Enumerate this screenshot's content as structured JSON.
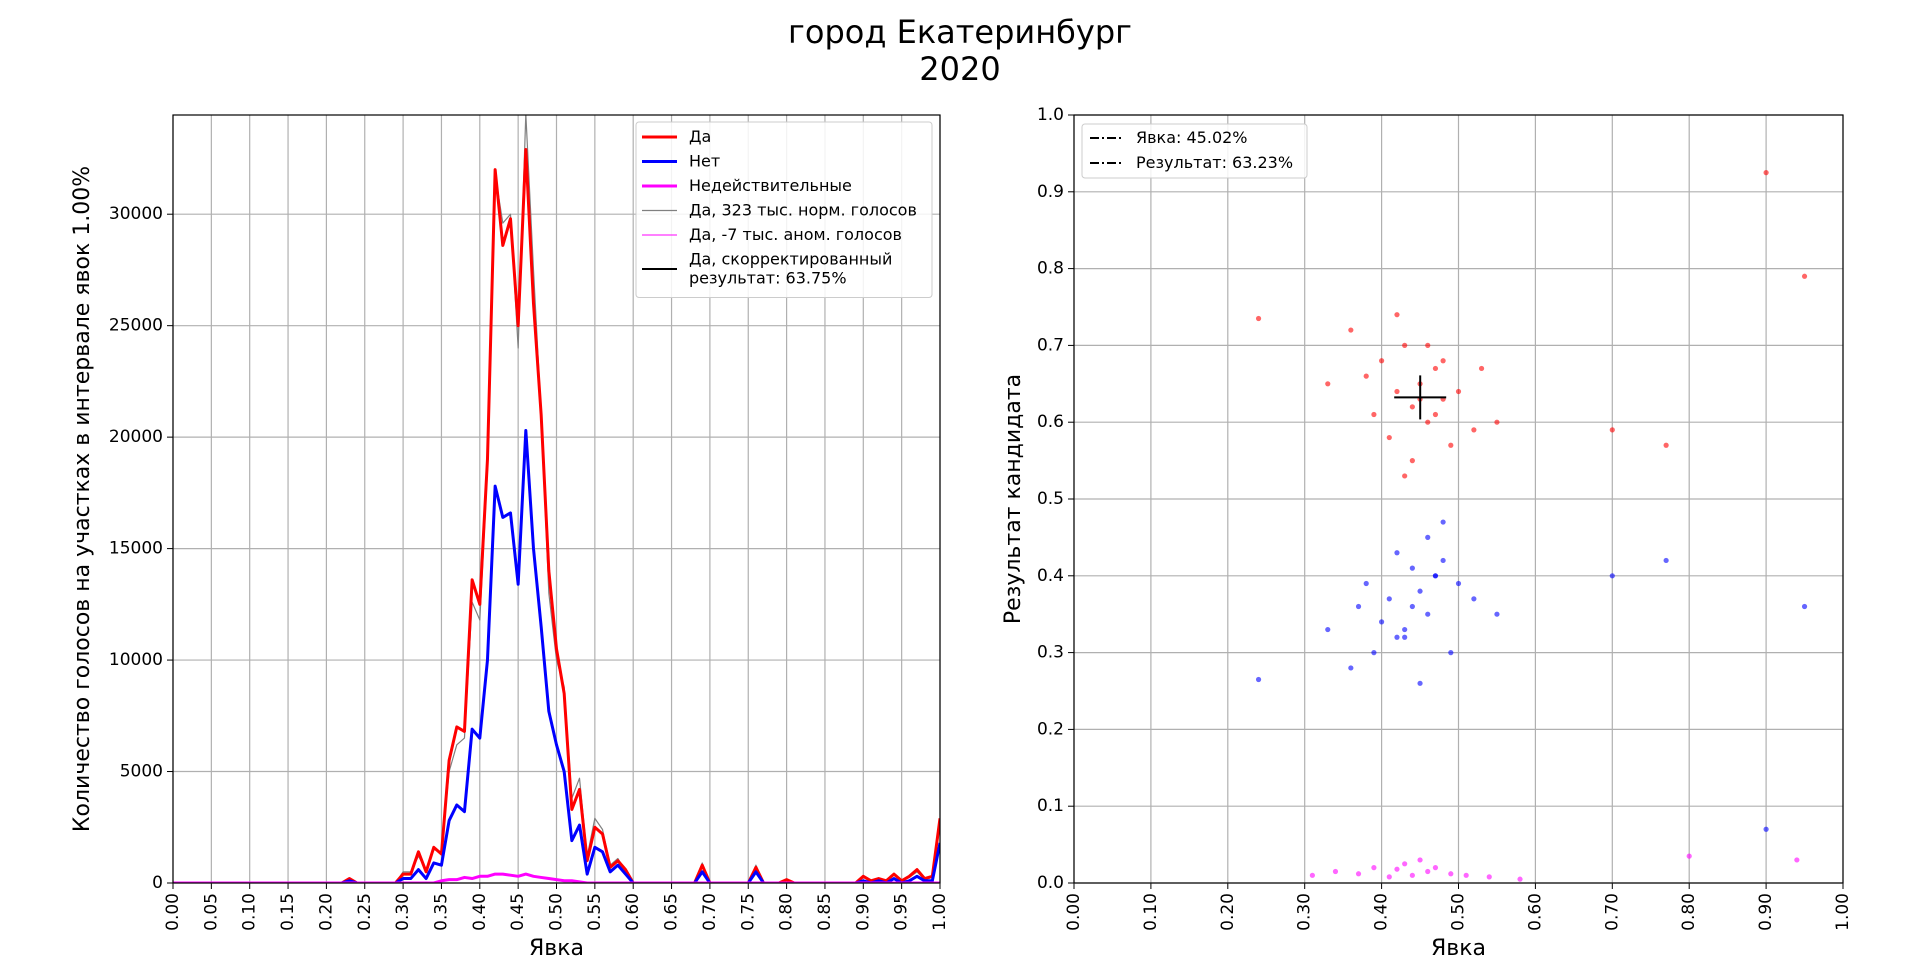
{
  "title": "город Екатеринбург",
  "subtitle": "2020",
  "chart_data": [
    {
      "type": "line",
      "xlabel": "Явка",
      "ylabel": "Количество голосов на участках в интервале явок 1.00%",
      "xlim": [
        0,
        1
      ],
      "ylim": [
        0,
        34450
      ],
      "xticks": [
        {
          "value": 0,
          "label": "0.00"
        },
        {
          "value": 0.05,
          "label": "0.05"
        },
        {
          "value": 0.1,
          "label": "0.10"
        },
        {
          "value": 0.15,
          "label": "0.15"
        },
        {
          "value": 0.2,
          "label": "0.20"
        },
        {
          "value": 0.25,
          "label": "0.25"
        },
        {
          "value": 0.3,
          "label": "0.30"
        },
        {
          "value": 0.35,
          "label": "0.35"
        },
        {
          "value": 0.4,
          "label": "0.40"
        },
        {
          "value": 0.45,
          "label": "0.45"
        },
        {
          "value": 0.5,
          "label": "0.50"
        },
        {
          "value": 0.55,
          "label": "0.55"
        },
        {
          "value": 0.6,
          "label": "0.60"
        },
        {
          "value": 0.65,
          "label": "0.65"
        },
        {
          "value": 0.7,
          "label": "0.70"
        },
        {
          "value": 0.75,
          "label": "0.75"
        },
        {
          "value": 0.8,
          "label": "0.80"
        },
        {
          "value": 0.85,
          "label": "0.85"
        },
        {
          "value": 0.9,
          "label": "0.90"
        },
        {
          "value": 0.95,
          "label": "0.95"
        },
        {
          "value": 1,
          "label": "1.00"
        }
      ],
      "yticks": [
        0,
        5000,
        10000,
        15000,
        20000,
        25000,
        30000
      ],
      "grid": true,
      "legend": "upper right",
      "x": [
        0,
        0.01,
        0.02,
        0.03,
        0.04,
        0.05,
        0.06,
        0.07,
        0.08,
        0.09,
        0.1,
        0.11,
        0.12,
        0.13,
        0.14,
        0.15,
        0.16,
        0.17,
        0.18,
        0.19,
        0.2,
        0.21,
        0.22,
        0.23,
        0.24,
        0.25,
        0.26,
        0.27,
        0.28,
        0.29,
        0.3,
        0.31,
        0.32,
        0.33,
        0.34,
        0.35,
        0.36,
        0.37,
        0.38,
        0.39,
        0.4,
        0.41,
        0.42,
        0.43,
        0.44,
        0.45,
        0.46,
        0.47,
        0.48,
        0.49,
        0.5,
        0.51,
        0.52,
        0.53,
        0.54,
        0.55,
        0.56,
        0.57,
        0.58,
        0.59,
        0.6,
        0.61,
        0.62,
        0.63,
        0.64,
        0.65,
        0.66,
        0.67,
        0.68,
        0.69,
        0.7,
        0.71,
        0.72,
        0.73,
        0.74,
        0.75,
        0.76,
        0.77,
        0.78,
        0.79,
        0.8,
        0.81,
        0.82,
        0.83,
        0.84,
        0.85,
        0.86,
        0.87,
        0.88,
        0.89,
        0.9,
        0.91,
        0.92,
        0.93,
        0.94,
        0.95,
        0.96,
        0.97,
        0.98,
        0.99,
        1
      ],
      "series": [
        {
          "name": "Да, 323 тыс. норм. голосов",
          "color": "#808080",
          "width": 1.2,
          "values": [
            0,
            0,
            0,
            0,
            0,
            0,
            0,
            0,
            0,
            0,
            0,
            0,
            0,
            0,
            0,
            0,
            0,
            0,
            0,
            0,
            0,
            0,
            0,
            200,
            0,
            0,
            0,
            0,
            0,
            0,
            500,
            500,
            1200,
            600,
            1500,
            1400,
            5000,
            6200,
            6500,
            12600,
            11800,
            18500,
            31800,
            29600,
            30000,
            24000,
            34500,
            27500,
            21000,
            13000,
            10000,
            8800,
            3800,
            4700,
            1200,
            2900,
            2400,
            800,
            1100,
            500,
            0,
            0,
            0,
            0,
            0,
            0,
            0,
            0,
            0,
            900,
            0,
            0,
            0,
            0,
            0,
            0,
            800,
            0,
            0,
            0,
            150,
            0,
            0,
            0,
            0,
            0,
            0,
            0,
            0,
            0,
            250,
            100,
            150,
            100,
            350,
            100,
            250,
            500,
            150,
            250,
            2600
          ]
        },
        {
          "name": "Да",
          "color": "#ff0000",
          "width": 3,
          "values": [
            0,
            0,
            0,
            0,
            0,
            0,
            0,
            0,
            0,
            0,
            0,
            0,
            0,
            0,
            0,
            0,
            0,
            0,
            0,
            0,
            0,
            0,
            0,
            200,
            0,
            0,
            0,
            0,
            0,
            0,
            400,
            400,
            1400,
            500,
            1600,
            1300,
            5500,
            7000,
            6800,
            13600,
            12500,
            19000,
            32000,
            28600,
            29800,
            25000,
            32900,
            26000,
            21000,
            14000,
            10500,
            8500,
            3300,
            4200,
            1000,
            2500,
            2200,
            700,
            1000,
            600,
            0,
            0,
            0,
            0,
            0,
            0,
            0,
            0,
            0,
            800,
            0,
            0,
            0,
            0,
            0,
            0,
            700,
            0,
            0,
            0,
            150,
            0,
            0,
            0,
            0,
            0,
            0,
            0,
            0,
            0,
            300,
            100,
            200,
            100,
            400,
            100,
            300,
            600,
            200,
            300,
            2900
          ]
        },
        {
          "name": "Нет",
          "color": "#0000ff",
          "width": 3,
          "values": [
            0,
            0,
            0,
            0,
            0,
            0,
            0,
            0,
            0,
            0,
            0,
            0,
            0,
            0,
            0,
            0,
            0,
            0,
            0,
            0,
            0,
            0,
            0,
            100,
            0,
            0,
            0,
            0,
            0,
            0,
            200,
            200,
            600,
            200,
            900,
            800,
            2800,
            3500,
            3200,
            6900,
            6500,
            10000,
            17800,
            16400,
            16600,
            13400,
            20300,
            15000,
            11500,
            7700,
            6200,
            5000,
            1900,
            2600,
            400,
            1600,
            1400,
            500,
            800,
            400,
            0,
            0,
            0,
            0,
            0,
            0,
            0,
            0,
            0,
            500,
            0,
            0,
            0,
            0,
            0,
            0,
            500,
            0,
            0,
            0,
            0,
            0,
            0,
            0,
            0,
            0,
            0,
            0,
            0,
            0,
            100,
            0,
            100,
            0,
            200,
            0,
            100,
            300,
            100,
            100,
            1800
          ]
        },
        {
          "name": "Недействительные",
          "color": "#ff00ff",
          "width": 3,
          "values": [
            0,
            0,
            0,
            0,
            0,
            0,
            0,
            0,
            0,
            0,
            0,
            0,
            0,
            0,
            0,
            0,
            0,
            0,
            0,
            0,
            0,
            0,
            0,
            0,
            0,
            0,
            0,
            0,
            0,
            0,
            0,
            0,
            0,
            0,
            0,
            100,
            150,
            150,
            250,
            200,
            300,
            300,
            400,
            400,
            350,
            300,
            400,
            300,
            250,
            200,
            150,
            100,
            100,
            50,
            0,
            0,
            0,
            0,
            0,
            0,
            0,
            0,
            0,
            0,
            0,
            0,
            0,
            0,
            0,
            0,
            0,
            0,
            0,
            0,
            0,
            0,
            0,
            0,
            0,
            0,
            0,
            0,
            0,
            0,
            0,
            0,
            0,
            0,
            0,
            0,
            0,
            0,
            0,
            0,
            0,
            0,
            0,
            0,
            0,
            0,
            0
          ]
        },
        {
          "name": "Да, -7 тыс. аном. голосов",
          "color": "#ff00ff",
          "width": 1,
          "values": [
            0,
            0,
            0,
            0,
            0,
            0,
            0,
            0,
            0,
            0,
            0,
            0,
            0,
            0,
            0,
            0,
            0,
            0,
            0,
            0,
            0,
            0,
            0,
            0,
            0,
            0,
            0,
            0,
            0,
            0,
            0,
            0,
            0,
            0,
            0,
            0,
            0,
            0,
            0,
            0,
            0,
            0,
            0,
            0,
            0,
            0,
            0,
            0,
            0,
            0,
            0,
            0,
            0,
            0,
            0,
            0,
            0,
            0,
            0,
            0,
            0,
            0,
            0,
            0,
            0,
            0,
            0,
            0,
            0,
            0,
            0,
            0,
            0,
            0,
            0,
            0,
            0,
            0,
            0,
            0,
            0,
            0,
            0,
            0,
            0,
            0,
            0,
            0,
            0,
            0,
            0,
            0,
            0,
            0,
            0,
            0,
            0,
            0,
            0,
            0,
            0
          ]
        },
        {
          "name": "Да, скорректированный\nрезультат: 63.75%",
          "color": "#000000",
          "width": 2,
          "values": [
            null,
            null,
            null,
            null,
            null,
            null,
            null,
            null,
            null,
            null,
            null,
            null,
            null,
            null,
            null,
            null,
            null,
            null,
            null,
            null,
            null,
            null,
            null,
            null,
            null,
            null,
            null,
            null,
            null,
            null,
            null,
            null,
            null,
            null,
            null,
            null,
            null,
            null,
            null,
            null,
            null,
            null,
            null,
            null,
            null,
            null,
            null,
            null,
            null,
            null,
            null,
            null,
            null,
            null,
            null,
            null,
            null,
            null,
            null,
            null,
            null,
            null,
            null,
            null,
            null,
            null,
            null,
            null,
            null,
            null,
            null,
            null,
            null,
            null,
            null,
            null,
            null,
            null,
            null,
            null,
            null,
            null,
            null,
            null,
            null,
            null,
            null,
            null,
            null,
            null,
            null,
            null,
            null,
            null,
            null,
            null,
            null,
            null,
            null,
            null,
            null
          ]
        }
      ],
      "legend_order": [
        1,
        2,
        3,
        0,
        4,
        5
      ]
    },
    {
      "type": "scatter",
      "xlabel": "Явка",
      "ylabel": "Результат кандидата",
      "xlim": [
        0,
        1
      ],
      "ylim": [
        0,
        1
      ],
      "xticks": [
        {
          "value": 0,
          "label": "0.00"
        },
        {
          "value": 0.1,
          "label": "0.10"
        },
        {
          "value": 0.2,
          "label": "0.20"
        },
        {
          "value": 0.3,
          "label": "0.30"
        },
        {
          "value": 0.4,
          "label": "0.40"
        },
        {
          "value": 0.5,
          "label": "0.50"
        },
        {
          "value": 0.6,
          "label": "0.60"
        },
        {
          "value": 0.7,
          "label": "0.70"
        },
        {
          "value": 0.8,
          "label": "0.80"
        },
        {
          "value": 0.9,
          "label": "0.90"
        },
        {
          "value": 1,
          "label": "1.00"
        }
      ],
      "yticks": [
        {
          "value": 0,
          "label": "0.0"
        },
        {
          "value": 0.1,
          "label": "0.1"
        },
        {
          "value": 0.2,
          "label": "0.2"
        },
        {
          "value": 0.3,
          "label": "0.3"
        },
        {
          "value": 0.4,
          "label": "0.4"
        },
        {
          "value": 0.5,
          "label": "0.5"
        },
        {
          "value": 0.6,
          "label": "0.6"
        },
        {
          "value": 0.7,
          "label": "0.7"
        },
        {
          "value": 0.8,
          "label": "0.8"
        },
        {
          "value": 0.9,
          "label": "0.9"
        },
        {
          "value": 1,
          "label": "1.0"
        }
      ],
      "grid": true,
      "legend": "upper left",
      "legend_entries": [
        "Явка: 45.02%",
        "Результат: 63.23%"
      ],
      "crosshair": {
        "x": 0.4502,
        "y": 0.6323
      },
      "series": [
        {
          "color": "#ff0000",
          "x": [
            0.38,
            0.4,
            0.42,
            0.44,
            0.45,
            0.46,
            0.47,
            0.48,
            0.43,
            0.41,
            0.39,
            0.5,
            0.52,
            0.36,
            0.44,
            0.46,
            0.49,
            0.42,
            0.45,
            0.47,
            0.55,
            0.33,
            0.53,
            0.43,
            0.48,
            0.24,
            0.77,
            0.7,
            0.9,
            0.95
          ],
          "y": [
            0.66,
            0.68,
            0.64,
            0.62,
            0.65,
            0.6,
            0.67,
            0.63,
            0.7,
            0.58,
            0.61,
            0.64,
            0.59,
            0.72,
            0.55,
            0.7,
            0.57,
            0.74,
            0.63,
            0.61,
            0.6,
            0.65,
            0.67,
            0.53,
            0.68,
            0.735,
            0.57,
            0.59,
            0.925,
            0.79
          ]
        },
        {
          "color": "#0000ff",
          "x": [
            0.4,
            0.42,
            0.44,
            0.45,
            0.46,
            0.47,
            0.43,
            0.41,
            0.39,
            0.48,
            0.5,
            0.37,
            0.44,
            0.36,
            0.46,
            0.49,
            0.42,
            0.45,
            0.52,
            0.38,
            0.47,
            0.55,
            0.33,
            0.48,
            0.43,
            0.24,
            0.77,
            0.7,
            0.9,
            0.95
          ],
          "y": [
            0.34,
            0.32,
            0.36,
            0.38,
            0.35,
            0.4,
            0.33,
            0.37,
            0.3,
            0.42,
            0.39,
            0.36,
            0.41,
            0.28,
            0.45,
            0.3,
            0.43,
            0.26,
            0.37,
            0.39,
            0.4,
            0.35,
            0.33,
            0.47,
            0.32,
            0.265,
            0.42,
            0.4,
            0.07,
            0.36
          ]
        },
        {
          "color": "#ff00ff",
          "x": [
            0.31,
            0.34,
            0.37,
            0.39,
            0.41,
            0.42,
            0.43,
            0.44,
            0.45,
            0.46,
            0.47,
            0.49,
            0.51,
            0.54,
            0.58,
            0.8,
            0.94
          ],
          "y": [
            0.01,
            0.015,
            0.012,
            0.02,
            0.008,
            0.018,
            0.025,
            0.01,
            0.03,
            0.015,
            0.02,
            0.012,
            0.01,
            0.008,
            0.005,
            0.035,
            0.03
          ]
        }
      ]
    }
  ]
}
